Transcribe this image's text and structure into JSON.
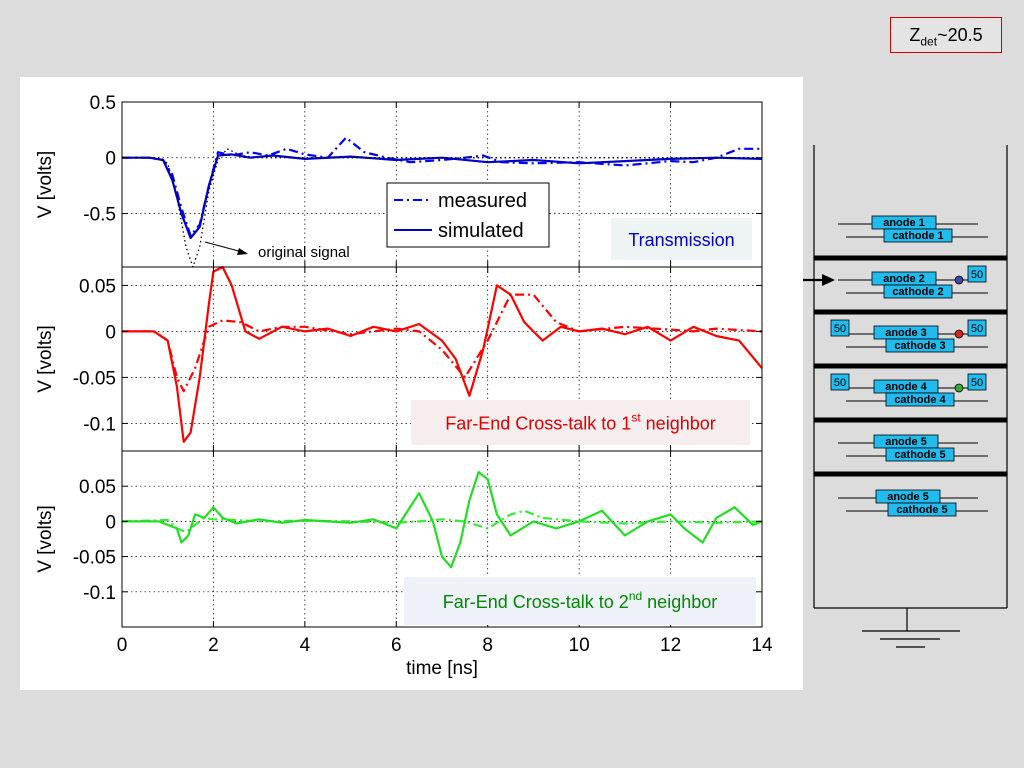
{
  "header": {
    "z_det_main": "Z",
    "z_det_sub": "det",
    "z_det_value": "~20.5"
  },
  "chart_data": [
    {
      "type": "line",
      "ylabel": "V [volts]",
      "xlim": [
        0,
        14
      ],
      "ylim": [
        -0.98,
        0.5
      ],
      "yticks": [
        0.5,
        0,
        -0.5
      ],
      "ytick_labels": [
        "0.5",
        "0",
        "-0.5"
      ],
      "grid": true,
      "legend": {
        "position": "center",
        "entries": [
          "measured",
          "simulated"
        ]
      },
      "panel_label": "Transmission",
      "panel_label_color": "#0000c8",
      "annotation": "original signal",
      "series": [
        {
          "name": "measured",
          "style": "dash-dot",
          "color": "#0000ff",
          "x": [
            0,
            0.6,
            0.9,
            1.1,
            1.3,
            1.5,
            1.7,
            1.9,
            2.1,
            2.4,
            2.8,
            3.2,
            3.6,
            4.0,
            4.5,
            4.9,
            5.3,
            5.8,
            6.3,
            7.0,
            7.5,
            7.9,
            8.3,
            9.0,
            10.0,
            11.0,
            12.0,
            12.5,
            13.0,
            13.5,
            14.0
          ],
          "y": [
            0,
            0,
            -0.02,
            -0.15,
            -0.45,
            -0.7,
            -0.6,
            -0.25,
            0.05,
            0.02,
            0.05,
            0.02,
            0.08,
            0.03,
            0.0,
            0.18,
            0.05,
            0.0,
            -0.04,
            -0.02,
            0.0,
            0.02,
            -0.04,
            -0.05,
            -0.04,
            -0.07,
            -0.03,
            -0.04,
            0.0,
            0.08,
            0.08
          ]
        },
        {
          "name": "simulated",
          "style": "solid",
          "color": "#0000c8",
          "x": [
            0,
            0.6,
            0.9,
            1.1,
            1.3,
            1.5,
            1.7,
            1.9,
            2.1,
            2.4,
            2.8,
            3.3,
            4.0,
            5.0,
            6.0,
            7.0,
            8.0,
            9.0,
            10.0,
            11.0,
            12.0,
            13.0,
            14.0
          ],
          "y": [
            0,
            0,
            -0.02,
            -0.2,
            -0.5,
            -0.72,
            -0.62,
            -0.25,
            0.02,
            0.03,
            0.0,
            0.02,
            -0.01,
            0.01,
            -0.02,
            0.0,
            -0.04,
            -0.02,
            -0.05,
            -0.03,
            -0.01,
            0.0,
            -0.01
          ]
        },
        {
          "name": "original signal",
          "style": "dotted",
          "color": "#000000",
          "x": [
            0,
            0.8,
            1.0,
            1.2,
            1.4,
            1.55,
            1.7,
            1.9,
            2.1,
            2.3,
            2.6,
            3.0,
            14.0
          ],
          "y": [
            0,
            0,
            -0.05,
            -0.35,
            -0.8,
            -0.98,
            -0.8,
            -0.3,
            -0.02,
            0.08,
            0.02,
            0.0,
            0.0
          ]
        }
      ]
    },
    {
      "type": "line",
      "ylabel": "V [volts]",
      "xlim": [
        0,
        14
      ],
      "ylim": [
        -0.13,
        0.07
      ],
      "yticks": [
        0.05,
        0,
        -0.05,
        -0.1
      ],
      "ytick_labels": [
        "0.05",
        "0",
        "-0.05",
        "-0.1"
      ],
      "grid": true,
      "panel_label": "Far-End Cross-talk to 1",
      "panel_label_sup": "st",
      "panel_label_tail": " neighbor",
      "panel_label_color": "#dd0000",
      "series": [
        {
          "name": "measured",
          "style": "dash-dot",
          "color": "#ff0000",
          "x": [
            0,
            0.7,
            1.0,
            1.2,
            1.35,
            1.6,
            1.9,
            2.2,
            2.6,
            3.0,
            3.5,
            4.0,
            5.0,
            6.0,
            6.5,
            7.0,
            7.5,
            8.0,
            8.5,
            9.0,
            9.5,
            10.0,
            11.0,
            12.0,
            12.5,
            13.0,
            14.0
          ],
          "y": [
            0,
            0,
            -0.01,
            -0.05,
            -0.065,
            -0.04,
            0.005,
            0.012,
            0.01,
            0.0,
            0.005,
            0.005,
            -0.003,
            0.003,
            0.0,
            -0.02,
            -0.05,
            -0.01,
            0.04,
            0.04,
            0.01,
            0.0,
            0.005,
            0.002,
            0.0,
            0.003,
            0.0
          ]
        },
        {
          "name": "simulated",
          "style": "solid",
          "color": "#ff0000",
          "x": [
            0,
            0.7,
            1.0,
            1.2,
            1.3,
            1.35,
            1.5,
            1.7,
            1.9,
            2.0,
            2.2,
            2.4,
            2.7,
            3.0,
            3.5,
            4.0,
            4.5,
            5.0,
            5.5,
            6.0,
            6.5,
            7.0,
            7.3,
            7.6,
            7.9,
            8.2,
            8.5,
            8.8,
            9.2,
            9.6,
            10.0,
            10.5,
            11.0,
            11.5,
            12.0,
            12.5,
            13.0,
            13.5,
            14.0
          ],
          "y": [
            0,
            0,
            -0.01,
            -0.06,
            -0.1,
            -0.12,
            -0.11,
            -0.05,
            0.03,
            0.065,
            0.07,
            0.05,
            0.0,
            -0.008,
            0.005,
            0.0,
            0.003,
            -0.005,
            0.005,
            0.0,
            0.008,
            -0.01,
            -0.03,
            -0.07,
            -0.02,
            0.05,
            0.04,
            0.01,
            -0.01,
            0.005,
            0.0,
            0.003,
            -0.003,
            0.005,
            -0.01,
            0.005,
            -0.005,
            -0.01,
            -0.04
          ]
        }
      ]
    },
    {
      "type": "line",
      "ylabel": "V [volts]",
      "xlabel": "time [ns]",
      "xlim": [
        0,
        14
      ],
      "ylim": [
        -0.15,
        0.1
      ],
      "xticks": [
        0,
        2,
        4,
        6,
        8,
        10,
        12,
        14
      ],
      "xtick_labels": [
        "0",
        "2",
        "4",
        "6",
        "8",
        "10",
        "12",
        "14"
      ],
      "yticks": [
        0.05,
        0,
        -0.05,
        -0.1
      ],
      "ytick_labels": [
        "0.05",
        "0",
        "-0.05",
        "-0.1"
      ],
      "grid": true,
      "panel_label": "Far-End Cross-talk to 2",
      "panel_label_sup": "nd",
      "panel_label_tail": " neighbor",
      "panel_label_color": "#008800",
      "series": [
        {
          "name": "measured",
          "style": "dash-dot",
          "color": "#33ee33",
          "x": [
            0,
            1.0,
            1.2,
            1.4,
            1.6,
            1.8,
            2.0,
            2.5,
            3.0,
            4.0,
            5.0,
            6.0,
            6.5,
            7.0,
            7.5,
            8.0,
            8.5,
            8.8,
            9.2,
            10.0,
            11.0,
            12.0,
            13.0,
            14.0
          ],
          "y": [
            0,
            0.002,
            -0.01,
            -0.015,
            -0.005,
            0.005,
            0.003,
            0.002,
            0.0,
            0.001,
            0.0,
            -0.002,
            0.0,
            0.003,
            0.0,
            -0.01,
            0.01,
            0.015,
            0.005,
            0.0,
            -0.003,
            0.0,
            -0.002,
            0.0
          ]
        },
        {
          "name": "simulated",
          "style": "solid",
          "color": "#22dd22",
          "x": [
            0,
            0.8,
            1.0,
            1.2,
            1.3,
            1.45,
            1.6,
            1.8,
            2.0,
            2.2,
            2.5,
            3.0,
            3.5,
            4.0,
            4.5,
            5.0,
            5.5,
            6.0,
            6.2,
            6.5,
            6.8,
            7.0,
            7.2,
            7.4,
            7.6,
            7.8,
            8.0,
            8.2,
            8.5,
            9.0,
            9.5,
            10.0,
            10.5,
            11.0,
            11.5,
            12.0,
            12.3,
            12.7,
            13.0,
            13.4,
            13.8,
            14.0
          ],
          "y": [
            0,
            0,
            -0.005,
            -0.01,
            -0.03,
            -0.02,
            0.01,
            0.005,
            0.02,
            0.005,
            -0.003,
            0.003,
            -0.002,
            0.002,
            0.0,
            -0.002,
            0.003,
            -0.01,
            0.01,
            0.04,
            0.0,
            -0.05,
            -0.065,
            -0.03,
            0.03,
            0.07,
            0.06,
            0.01,
            -0.02,
            0.0,
            -0.01,
            0.0,
            0.015,
            -0.02,
            0.0,
            0.01,
            -0.01,
            -0.03,
            0.005,
            0.02,
            -0.005,
            0.0
          ]
        }
      ]
    }
  ],
  "diagram": {
    "layers": [
      {
        "anode": "anode 1",
        "cathode": "cathode 1",
        "anode_term": "",
        "left_term": "",
        "dot_color": ""
      },
      {
        "anode": "anode 2",
        "cathode": "cathode 2",
        "anode_term": "50",
        "left_term": "",
        "dot_color": "#4444aa"
      },
      {
        "anode": "anode 3",
        "cathode": "cathode 3",
        "anode_term": "50",
        "left_term": "50",
        "dot_color": "#dd2222"
      },
      {
        "anode": "anode 4",
        "cathode": "cathode 4",
        "anode_term": "50",
        "left_term": "50",
        "dot_color": "#33aa33"
      },
      {
        "anode": "anode 5",
        "cathode": "cathode 5",
        "anode_term": "",
        "left_term": "",
        "dot_color": ""
      },
      {
        "anode": "anode 5",
        "cathode": "cathode 5",
        "anode_term": "",
        "left_term": "",
        "dot_color": ""
      }
    ],
    "box_color": "#22bbee"
  }
}
